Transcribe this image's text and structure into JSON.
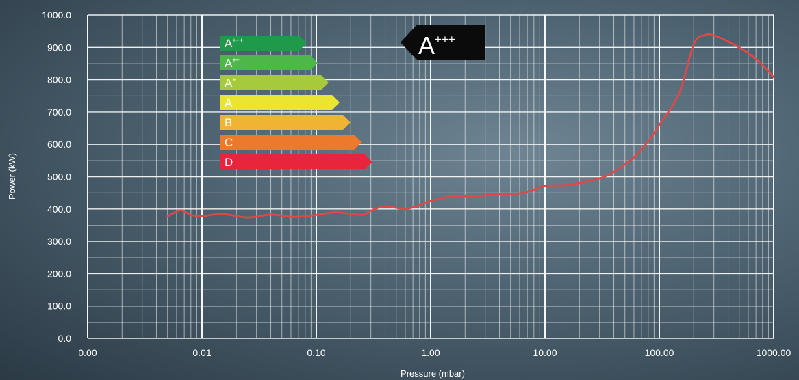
{
  "chart_data": {
    "type": "line",
    "xlabel": "Pressure (mbar)",
    "ylabel": "Power (kW)",
    "x_scale": "log",
    "xlim": [
      0.001,
      1000
    ],
    "ylim": [
      0,
      1000
    ],
    "grid": true,
    "x_tick_labels": [
      "0.00",
      "0.01",
      "0.10",
      "1.00",
      "10.00",
      "100.00",
      "1000.00"
    ],
    "y_tick_labels": [
      "0.0",
      "100.0",
      "200.0",
      "300.0",
      "400.0",
      "500.0",
      "600.0",
      "700.0",
      "800.0",
      "900.0",
      "1000.0"
    ],
    "series": [
      {
        "color": "#e04848",
        "points": [
          [
            0.005,
            378
          ],
          [
            0.0065,
            396
          ],
          [
            0.008,
            382
          ],
          [
            0.01,
            378
          ],
          [
            0.015,
            385
          ],
          [
            0.025,
            374
          ],
          [
            0.04,
            383
          ],
          [
            0.06,
            376
          ],
          [
            0.08,
            378
          ],
          [
            0.1,
            382
          ],
          [
            0.15,
            390
          ],
          [
            0.25,
            382
          ],
          [
            0.3,
            395
          ],
          [
            0.4,
            408
          ],
          [
            0.6,
            400
          ],
          [
            0.8,
            412
          ],
          [
            1.0,
            425
          ],
          [
            1.5,
            438
          ],
          [
            2.5,
            440
          ],
          [
            4.0,
            446
          ],
          [
            6.0,
            448
          ],
          [
            8.0,
            460
          ],
          [
            10.0,
            472
          ],
          [
            15.0,
            474
          ],
          [
            20.0,
            480
          ],
          [
            30.0,
            495
          ],
          [
            40.0,
            515
          ],
          [
            60.0,
            560
          ],
          [
            80.0,
            610
          ],
          [
            100.0,
            660
          ],
          [
            150.0,
            760
          ],
          [
            200.0,
            910
          ],
          [
            250.0,
            938
          ],
          [
            300.0,
            937
          ],
          [
            400.0,
            918
          ],
          [
            600.0,
            882
          ],
          [
            800.0,
            845
          ],
          [
            1000.0,
            808
          ]
        ]
      }
    ],
    "energy_scale": [
      {
        "label": "A",
        "sup": "+++",
        "color": "#1f9a4a"
      },
      {
        "label": "A",
        "sup": "++",
        "color": "#4db848"
      },
      {
        "label": "A",
        "sup": "+",
        "color": "#a7c93c"
      },
      {
        "label": "A",
        "sup": "",
        "color": "#e9e530"
      },
      {
        "label": "B",
        "sup": "",
        "color": "#f0b334"
      },
      {
        "label": "C",
        "sup": "",
        "color": "#ed7a2b"
      },
      {
        "label": "D",
        "sup": "",
        "color": "#e8253a"
      }
    ],
    "rating_badge": {
      "label": "A",
      "sup": "+++"
    }
  }
}
